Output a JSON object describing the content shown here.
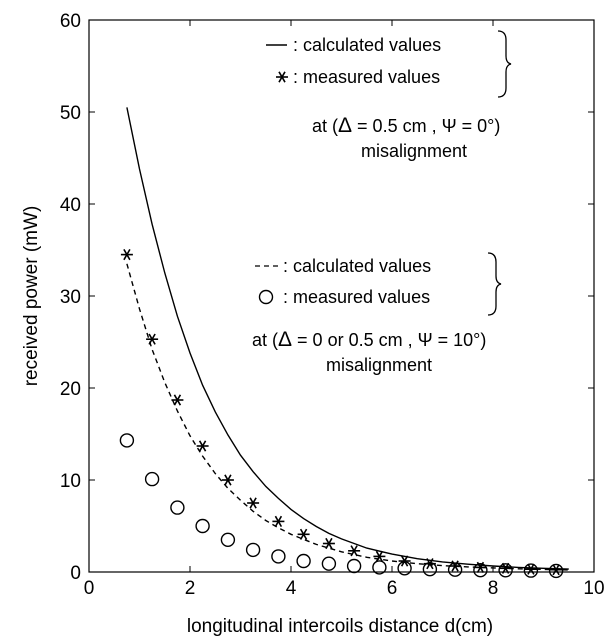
{
  "chart_data": {
    "type": "line",
    "title": "",
    "xlabel": "longitudinal intercoils distance d(cm)",
    "ylabel": "received power (mW)",
    "xlim": [
      0,
      10
    ],
    "ylim": [
      0,
      60
    ],
    "xticks": [
      0,
      2,
      4,
      6,
      8,
      10
    ],
    "yticks": [
      0,
      10,
      20,
      30,
      40,
      50,
      60
    ],
    "grid": false,
    "series": [
      {
        "key": "calc_psi0",
        "style": "solid-line",
        "color": "#000000",
        "x": [
          0.75,
          1.0,
          1.25,
          1.5,
          1.75,
          2.0,
          2.25,
          2.5,
          2.75,
          3.0,
          3.25,
          3.5,
          3.75,
          4.0,
          4.25,
          4.5,
          4.75,
          5.0,
          5.5,
          6.0,
          6.5,
          7.0,
          7.5,
          8.0,
          8.5,
          9.0,
          9.5
        ],
        "y": [
          50.5,
          43.8,
          37.8,
          32.5,
          27.8,
          23.8,
          20.3,
          17.4,
          14.9,
          12.7,
          10.9,
          9.3,
          8.0,
          6.8,
          5.8,
          4.95,
          4.2,
          3.6,
          2.6,
          1.95,
          1.45,
          1.1,
          0.85,
          0.65,
          0.5,
          0.4,
          0.32
        ]
      },
      {
        "key": "meas_psi0",
        "style": "asterisk",
        "color": "#000000",
        "x": [
          0.75,
          1.25,
          1.75,
          2.25,
          2.75,
          3.25,
          3.75,
          4.25,
          4.75,
          5.25,
          5.75,
          6.25,
          6.75,
          7.25,
          7.75,
          8.25,
          8.75,
          9.25
        ],
        "y": [
          34.5,
          25.3,
          18.7,
          13.7,
          10.0,
          7.5,
          5.5,
          4.1,
          3.1,
          2.3,
          1.7,
          1.2,
          0.9,
          0.65,
          0.5,
          0.4,
          0.3,
          0.25
        ]
      },
      {
        "key": "calc_psi10",
        "style": "dashed-line",
        "color": "#000000",
        "x": [
          0.75,
          1.0,
          1.25,
          1.5,
          1.75,
          2.0,
          2.25,
          2.5,
          2.75,
          3.0,
          3.25,
          3.5,
          3.75,
          4.0,
          4.5,
          5.0,
          5.5,
          6.0,
          6.5,
          7.0,
          7.5,
          8.0,
          8.5,
          9.0,
          9.5
        ],
        "y": [
          33.5,
          28.6,
          24.2,
          20.6,
          17.5,
          14.8,
          12.6,
          10.7,
          9.1,
          7.8,
          6.6,
          5.6,
          4.8,
          4.1,
          3.0,
          2.2,
          1.6,
          1.2,
          0.9,
          0.7,
          0.55,
          0.45,
          0.35,
          0.28,
          0.22
        ]
      },
      {
        "key": "meas_psi10",
        "style": "circle",
        "color": "#000000",
        "x": [
          0.75,
          1.25,
          1.75,
          2.25,
          2.75,
          3.25,
          3.75,
          4.25,
          4.75,
          5.25,
          5.75,
          6.25,
          6.75,
          7.25,
          7.75,
          8.25,
          8.75,
          9.25
        ],
        "y": [
          14.3,
          10.1,
          7.0,
          5.0,
          3.5,
          2.4,
          1.7,
          1.2,
          0.9,
          0.65,
          0.5,
          0.4,
          0.3,
          0.25,
          0.2,
          0.18,
          0.15,
          0.12
        ]
      }
    ],
    "annotations": {
      "group1": {
        "line1": ": calculated values",
        "line2": ": measured values",
        "cond_prefix": "at (",
        "cond_delta": "Δ",
        "cond_mid": " = 0.5 cm , Ψ = 0°)",
        "cond_suffix": "misalignment"
      },
      "group2": {
        "line1": ": calculated values",
        "line2": ": measured values",
        "cond_prefix": "at (",
        "cond_delta": "Δ",
        "cond_mid": " = 0 or 0.5 cm , Ψ = 10°)",
        "cond_suffix": "misalignment"
      }
    }
  }
}
